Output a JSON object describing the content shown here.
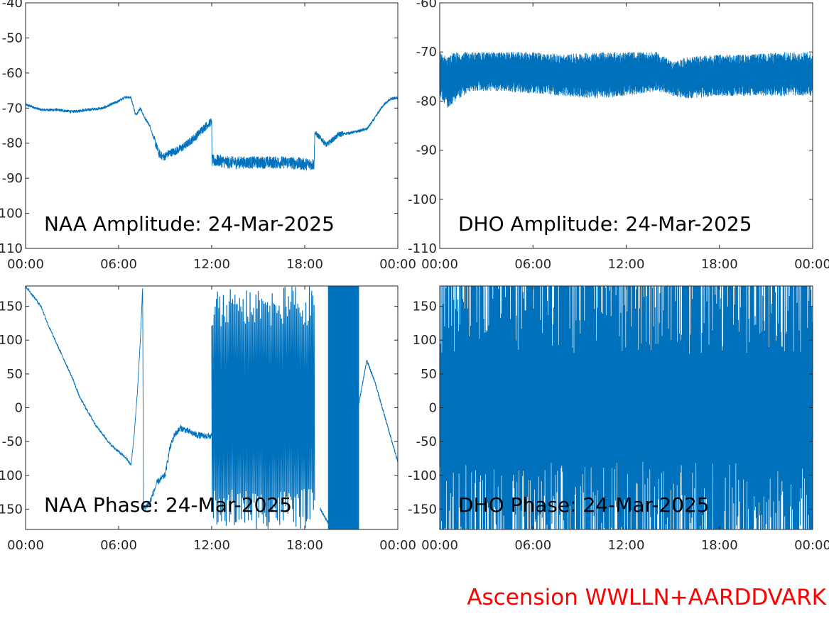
{
  "footer": {
    "label": "Ascension WWLLN+AARDDVARK",
    "color": "#ff0000"
  },
  "chart_data": [
    {
      "type": "line",
      "title": "NAA Amplitude: 24-Mar-2025",
      "xlabel": "",
      "ylabel": "",
      "xlim": [
        "00:00",
        "24:00"
      ],
      "x_tick_labels": [
        "00:00",
        "06:00",
        "12:00",
        "18:00",
        "00:00"
      ],
      "ylim": [
        -110,
        -40
      ],
      "y_ticks": [
        -40,
        -50,
        -60,
        -70,
        -80,
        -90,
        -100,
        -110
      ],
      "y_tick_labels": [
        "-40",
        "-50",
        "-60",
        "-70",
        "-80",
        "-90",
        "-100",
        "-110"
      ],
      "line_color": "#0072bd",
      "grid": false,
      "series": [
        {
          "x_hours": [
            0,
            1,
            2,
            3,
            4,
            5,
            6,
            6.5,
            6.8,
            7.1,
            7.4,
            7.7,
            8.0,
            8.3,
            8.6,
            8.9,
            9.2,
            9.5,
            9.8,
            10.2,
            10.6,
            11.0,
            11.4,
            11.8,
            12.0,
            12.02,
            12.5,
            13,
            14,
            15,
            16,
            17,
            18,
            18.6,
            18.65,
            19.0,
            19.4,
            19.8,
            20.2,
            21,
            22,
            22.5,
            23,
            23.5,
            24
          ],
          "y": [
            -69,
            -70.5,
            -70.5,
            -71,
            -70.5,
            -70,
            -68,
            -66.8,
            -67,
            -72,
            -70,
            -73,
            -75,
            -79,
            -83,
            -84,
            -83,
            -82.5,
            -82,
            -81,
            -79.5,
            -78,
            -76,
            -74.5,
            -73.8,
            -85,
            -85,
            -85.5,
            -85.5,
            -85.5,
            -85.5,
            -85.5,
            -86,
            -86,
            -77,
            -78.5,
            -80.5,
            -79,
            -77.5,
            -77,
            -76,
            -73,
            -69.5,
            -67.5,
            -67
          ]
        }
      ]
    },
    {
      "type": "line",
      "title": "DHO Amplitude: 24-Mar-2025",
      "xlabel": "",
      "ylabel": "",
      "xlim": [
        "00:00",
        "24:00"
      ],
      "x_tick_labels": [
        "00:00",
        "06:00",
        "12:00",
        "18:00",
        "00:00"
      ],
      "ylim": [
        -110,
        -60
      ],
      "y_ticks": [
        -60,
        -70,
        -80,
        -90,
        -100,
        -110
      ],
      "y_tick_labels": [
        "-60",
        "-70",
        "-80",
        "-90",
        "-100",
        "-110"
      ],
      "line_color": "#0072bd",
      "grid": false,
      "series": [
        {
          "x_hours": [
            0,
            0.5,
            1,
            2,
            4,
            6,
            8,
            10,
            12,
            14,
            15,
            16,
            18,
            20,
            22,
            24
          ],
          "y_upper": [
            -70,
            -71,
            -70,
            -70,
            -70,
            -70,
            -70.5,
            -70,
            -70,
            -70,
            -72,
            -71,
            -70.5,
            -70.5,
            -70,
            -70
          ],
          "y_lower": [
            -79,
            -81.5,
            -80,
            -78,
            -78,
            -78.5,
            -79,
            -79.5,
            -79,
            -78,
            -79,
            -79.5,
            -79,
            -79,
            -79,
            -79
          ]
        }
      ]
    },
    {
      "type": "line",
      "title": "NAA Phase: 24-Mar-2025",
      "xlabel": "",
      "ylabel": "",
      "xlim": [
        "00:00",
        "24:00"
      ],
      "x_tick_labels": [
        "00:00",
        "06:00",
        "12:00",
        "18:00",
        "00:00"
      ],
      "ylim": [
        -180,
        180
      ],
      "y_ticks": [
        150,
        100,
        50,
        0,
        -50,
        -100,
        -150
      ],
      "y_tick_labels": [
        "150",
        "100",
        "50",
        "0",
        "-50",
        "-100",
        "-150"
      ],
      "line_color": "#0072bd",
      "grid": false,
      "series": [
        {
          "x_hours": [
            0,
            0.5,
            1,
            1.5,
            2,
            2.5,
            3,
            3.5,
            4,
            4.5,
            5,
            5.5,
            6,
            6.5,
            6.8,
            7.0,
            7.2,
            7.4,
            7.55,
            7.6,
            8.0,
            8.5,
            9.0,
            9.3,
            9.6,
            10,
            10.5,
            11,
            11.5,
            12.0
          ],
          "y": [
            180,
            165,
            150,
            120,
            95,
            70,
            45,
            15,
            -5,
            -25,
            -40,
            -55,
            -65,
            -75,
            -85,
            -40,
            20,
            100,
            180,
            -150,
            -140,
            -110,
            -100,
            -60,
            -40,
            -30,
            -35,
            -40,
            -42,
            -42
          ]
        },
        {
          "x_hours": [
            19.0,
            19.5,
            20.0,
            22.0,
            22.5,
            23.0,
            23.5,
            24.0
          ],
          "y": [
            -150,
            -170,
            -180,
            70,
            40,
            0,
            -40,
            -80
          ]
        }
      ],
      "wrapping_region_hours": [
        [
          12.0,
          18.6
        ],
        [
          19.5,
          21.5
        ]
      ]
    },
    {
      "type": "line",
      "title": "DHO Phase: 24-Mar-2025",
      "xlabel": "",
      "ylabel": "",
      "xlim": [
        "00:00",
        "24:00"
      ],
      "x_tick_labels": [
        "00:00",
        "06:00",
        "12:00",
        "18:00",
        "00:00"
      ],
      "ylim": [
        -180,
        180
      ],
      "y_ticks": [
        150,
        100,
        50,
        0,
        -50,
        -100,
        -150
      ],
      "y_tick_labels": [
        "150",
        "100",
        "50",
        "0",
        "-50",
        "-100",
        "-150"
      ],
      "line_color": "#0072bd",
      "grid": false,
      "series": [],
      "wrapping_region_hours": [
        [
          0,
          24
        ]
      ]
    }
  ]
}
